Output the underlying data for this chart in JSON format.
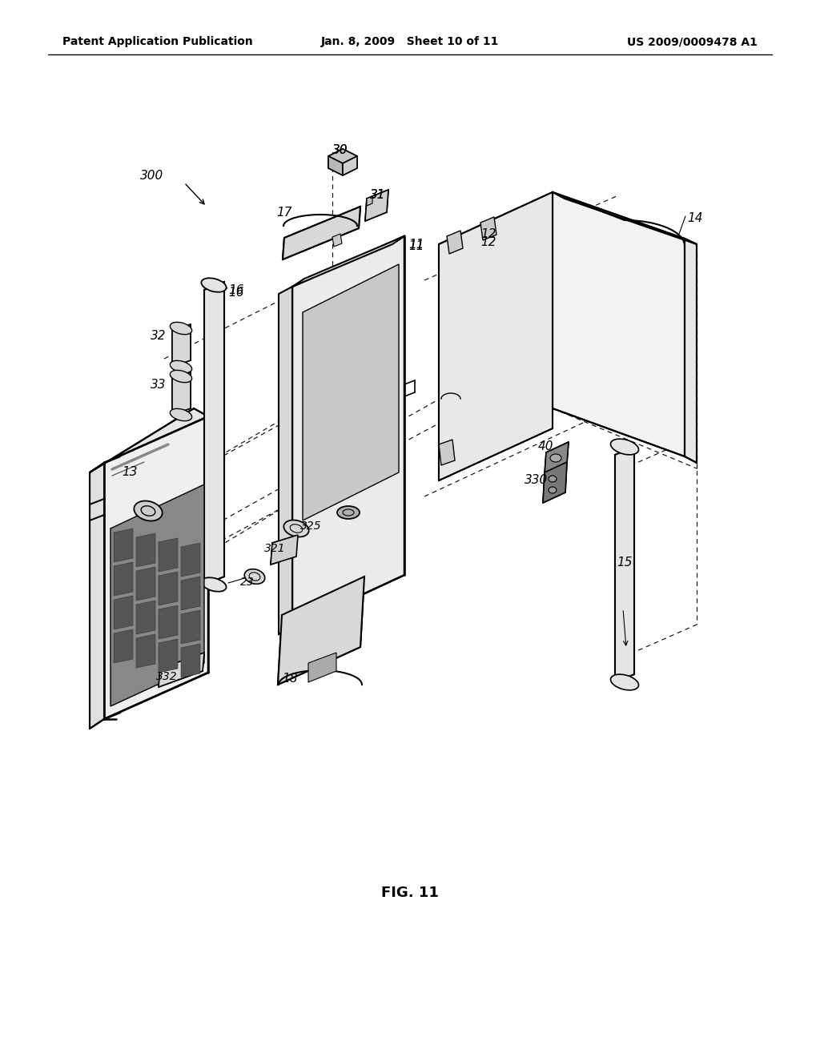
{
  "header_left": "Patent Application Publication",
  "header_mid": "Jan. 8, 2009   Sheet 10 of 11",
  "header_right": "US 2009/0009478 A1",
  "figure_label": "FIG. 11",
  "bg": "#ffffff"
}
